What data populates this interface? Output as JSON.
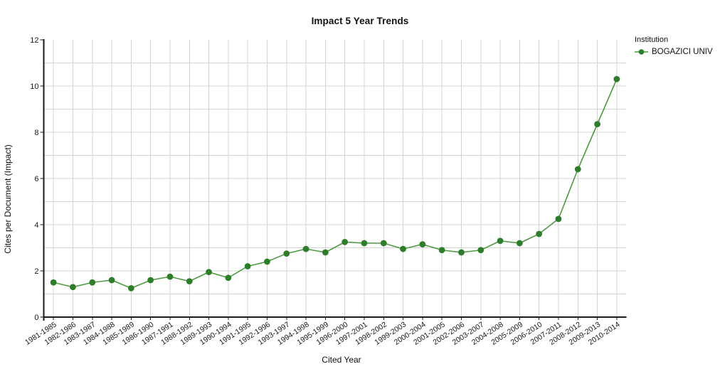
{
  "title": "Impact 5 Year Trends",
  "legend": {
    "header": "Institution",
    "series": "BOGAZICI UNIV"
  },
  "axes": {
    "y_title": "Cites per Document (Impact)",
    "x_title": "Cited Year"
  },
  "colors": {
    "line": "#4e9a41",
    "marker": "#2e7d2b",
    "grid": "#d4d4d4",
    "axis": "#1a1a1a",
    "text": "#1a1a1a"
  },
  "chart_data": {
    "type": "line",
    "title": "Impact 5 Year Trends",
    "xlabel": "Cited Year",
    "ylabel": "Cites per Document (Impact)",
    "ylim": [
      0,
      12
    ],
    "y_ticks": [
      0,
      2,
      4,
      6,
      8,
      10,
      12
    ],
    "grid": true,
    "legend_position": "right",
    "legend_title": "Institution",
    "categories": [
      "1981-1985",
      "1982-1986",
      "1983-1987",
      "1984-1988",
      "1985-1989",
      "1986-1990",
      "1987-1991",
      "1988-1992",
      "1989-1993",
      "1990-1994",
      "1991-1995",
      "1992-1996",
      "1993-1997",
      "1994-1998",
      "1995-1999",
      "1996-2000",
      "1997-2001",
      "1998-2002",
      "1999-2003",
      "2000-2004",
      "2001-2005",
      "2002-2006",
      "2003-2007",
      "2004-2008",
      "2005-2009",
      "2006-2010",
      "2007-2011",
      "2008-2012",
      "2009-2013",
      "2010-2014"
    ],
    "series": [
      {
        "name": "BOGAZICI UNIV",
        "values": [
          1.5,
          1.3,
          1.5,
          1.6,
          1.25,
          1.6,
          1.75,
          1.55,
          1.95,
          1.7,
          2.2,
          2.4,
          2.75,
          2.95,
          2.8,
          3.25,
          3.2,
          3.2,
          2.95,
          3.15,
          2.9,
          2.8,
          2.9,
          3.3,
          3.2,
          3.6,
          4.25,
          6.4,
          8.35,
          10.3
        ]
      }
    ]
  }
}
